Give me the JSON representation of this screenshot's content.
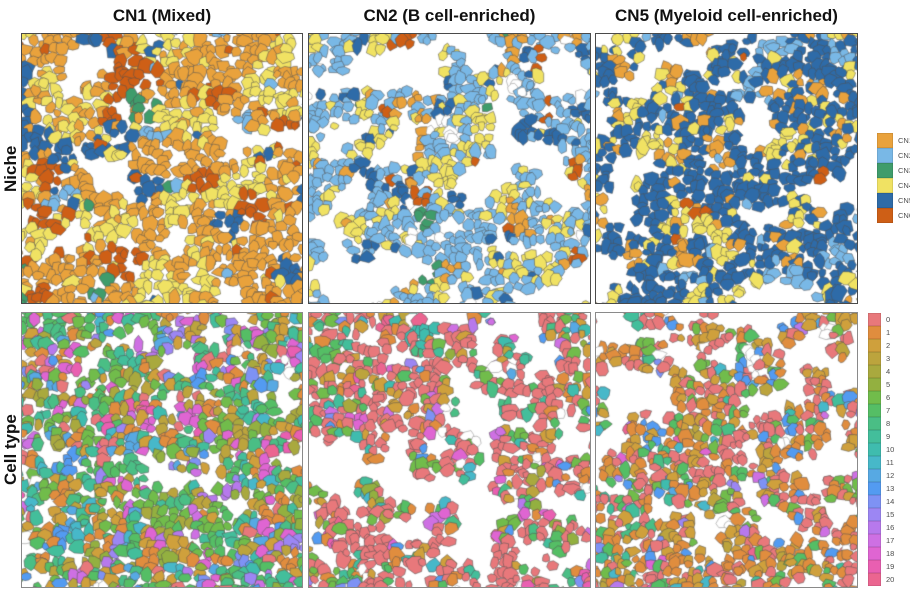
{
  "figure": {
    "column_titles": [
      "CN1 (Mixed)",
      "CN2 (B cell-enriched)",
      "CN5 (Myeloid cell-enriched)"
    ],
    "row_labels": [
      "Niche",
      "Cell type"
    ]
  },
  "legends": {
    "niche": {
      "items": [
        {
          "label": "CN1",
          "color": "#E9A23C"
        },
        {
          "label": "CN2",
          "color": "#79B8E6"
        },
        {
          "label": "CN3",
          "color": "#3F9C6B"
        },
        {
          "label": "CN4",
          "color": "#F0E263"
        },
        {
          "label": "CN5",
          "color": "#2E6BA8"
        },
        {
          "label": "CN6",
          "color": "#CE5F16"
        }
      ]
    },
    "cell_type": {
      "items": [
        {
          "label": "0",
          "color": "#E8787B"
        },
        {
          "label": "1",
          "color": "#E08D3E"
        },
        {
          "label": "2",
          "color": "#CFA03C"
        },
        {
          "label": "3",
          "color": "#BCA43D"
        },
        {
          "label": "4",
          "color": "#A9A93E"
        },
        {
          "label": "5",
          "color": "#93B040"
        },
        {
          "label": "6",
          "color": "#71BC4B"
        },
        {
          "label": "7",
          "color": "#55BE65"
        },
        {
          "label": "8",
          "color": "#4ABE85"
        },
        {
          "label": "9",
          "color": "#43BE9B"
        },
        {
          "label": "10",
          "color": "#3FBCAE"
        },
        {
          "label": "11",
          "color": "#47B8C9"
        },
        {
          "label": "12",
          "color": "#57A9E3"
        },
        {
          "label": "13",
          "color": "#539BF1"
        },
        {
          "label": "14",
          "color": "#7E92F4"
        },
        {
          "label": "15",
          "color": "#9C86F3"
        },
        {
          "label": "16",
          "color": "#B779EC"
        },
        {
          "label": "17",
          "color": "#CE70E3"
        },
        {
          "label": "18",
          "color": "#DF65D2"
        },
        {
          "label": "19",
          "color": "#E95FB1"
        },
        {
          "label": "20",
          "color": "#EB6590"
        }
      ]
    }
  },
  "chart_data": {
    "type": "heatmap",
    "subtype": "spatial-cell-segmentation-mosaic",
    "grid": {
      "rows": [
        "Niche",
        "Cell type"
      ],
      "columns": [
        "CN1 (Mixed)",
        "CN2 (B cell-enriched)",
        "CN5 (Myeloid cell-enriched)"
      ]
    },
    "outline_cell_color": "#FFFFFF",
    "panels": [
      {
        "id": "niche-cn1-mixed",
        "row": "Niche",
        "column_title": "CN1 (Mixed)",
        "palette": "niche",
        "composition": {
          "CN1": 0.5,
          "CN4": 0.27,
          "CN6": 0.13,
          "CN5": 0.05,
          "CN2": 0.04,
          "CN3": 0.01
        },
        "render": {
          "seed": 11,
          "spacing": 8.6,
          "cluster": 28,
          "cohesion": 0.78,
          "holes": 0.26,
          "holeScale": 26,
          "randSkip": 0.04,
          "bands": [
            {
              "cat": "CN5",
              "x0": 0.02,
              "x1": 0.42,
              "y": 0.42,
              "t": 0.085
            }
          ]
        }
      },
      {
        "id": "niche-cn2-b-cell-enriched",
        "row": "Niche",
        "column_title": "CN2 (B cell-enriched)",
        "palette": "niche",
        "composition": {
          "CN2": 0.55,
          "CN4": 0.24,
          "CN1": 0.08,
          "CN5": 0.07,
          "CN6": 0.02,
          "CN3": 0.01,
          "WHITE": 0.03
        },
        "render": {
          "seed": 22,
          "spacing": 8.0,
          "cluster": 21,
          "cohesion": 0.72,
          "holes": 0.4,
          "holeScale": 24,
          "randSkip": 0.05
        }
      },
      {
        "id": "niche-cn5-myeloid-cell-enriched",
        "row": "Niche",
        "column_title": "CN5 (Myeloid cell-enriched)",
        "palette": "niche",
        "composition": {
          "CN5": 0.57,
          "CN4": 0.26,
          "CN1": 0.12,
          "CN2": 0.04,
          "CN6": 0.01
        },
        "render": {
          "seed": 33,
          "spacing": 8.2,
          "cluster": 23,
          "cohesion": 0.7,
          "holes": 0.34,
          "holeScale": 26,
          "randSkip": 0.05
        }
      },
      {
        "id": "celltype-cn1-mixed",
        "row": "Cell type",
        "column_title": "CN1 (Mixed)",
        "palette": "cell_type",
        "composition": {
          "0": 0.04,
          "1": 0.1,
          "2": 0.08,
          "3": 0.05,
          "4": 0.05,
          "5": 0.04,
          "6": 0.12,
          "7": 0.1,
          "8": 0.09,
          "9": 0.08,
          "10": 0.03,
          "11": 0.02,
          "12": 0.02,
          "13": 0.03,
          "14": 0.02,
          "15": 0.02,
          "16": 0.02,
          "17": 0.03,
          "18": 0.05,
          "19": 0.02,
          "20": 0.01,
          "WHITE": 0.01
        },
        "render": {
          "seed": 44,
          "spacing": 8.3,
          "cluster": 15,
          "cohesion": 0.55,
          "holes": 0.24,
          "holeScale": 24,
          "randSkip": 0.03
        }
      },
      {
        "id": "celltype-cn2-b-cell-enriched",
        "row": "Cell type",
        "column_title": "CN2 (B cell-enriched)",
        "palette": "cell_type",
        "composition": {
          "0": 0.5,
          "1": 0.08,
          "2": 0.06,
          "3": 0.02,
          "4": 0.01,
          "5": 0.01,
          "6": 0.06,
          "7": 0.05,
          "8": 0.03,
          "9": 0.03,
          "10": 0.02,
          "11": 0.01,
          "12": 0.01,
          "13": 0.02,
          "14": 0.01,
          "15": 0.01,
          "16": 0.01,
          "17": 0.02,
          "18": 0.02,
          "19": 0.01,
          "20": 0.01,
          "WHITE": 0.04
        },
        "render": {
          "seed": 55,
          "spacing": 8.1,
          "cluster": 17,
          "cohesion": 0.5,
          "holes": 0.4,
          "holeScale": 22,
          "randSkip": 0.05
        }
      },
      {
        "id": "celltype-cn5-myeloid-cell-enriched",
        "row": "Cell type",
        "column_title": "CN5 (Myeloid cell-enriched)",
        "palette": "cell_type",
        "composition": {
          "0": 0.27,
          "1": 0.25,
          "2": 0.17,
          "3": 0.03,
          "6": 0.06,
          "7": 0.05,
          "8": 0.02,
          "9": 0.02,
          "10": 0.01,
          "11": 0.01,
          "12": 0.01,
          "13": 0.03,
          "14": 0.01,
          "15": 0.01,
          "16": 0.01,
          "17": 0.01,
          "18": 0.01,
          "19": 0.005,
          "20": 0.005,
          "WHITE": 0.03
        },
        "render": {
          "seed": 66,
          "spacing": 7.9,
          "cluster": 15,
          "cohesion": 0.5,
          "holes": 0.37,
          "holeScale": 22,
          "randSkip": 0.05
        }
      }
    ]
  }
}
